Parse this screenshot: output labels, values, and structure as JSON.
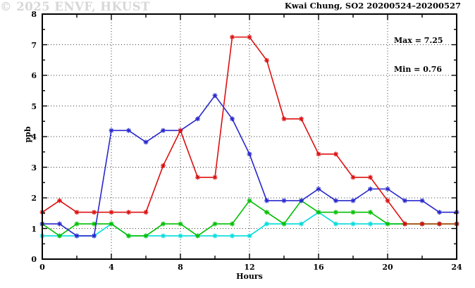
{
  "title": "Kwai Chung, SO2 20200524–20200527",
  "annotation": {
    "max_label": "Max = 7.25",
    "min_label": "Min = 0.76"
  },
  "watermark": "© 2025 ENVF, HKUST",
  "chart_data": {
    "type": "line",
    "title": "Kwai Chung, SO2 20200524–20200527",
    "xlabel": "Hours",
    "ylabel": "ppb",
    "xlim": [
      0,
      24
    ],
    "ylim": [
      0,
      8
    ],
    "x_tick_labels": [
      0,
      4,
      8,
      12,
      16,
      20,
      24
    ],
    "x_minor_tick_step": 2,
    "y_tick_labels": [
      0,
      1,
      2,
      3,
      4,
      5,
      6,
      7,
      8
    ],
    "y_minor_tick_step": 0.5,
    "grid": "dotted lines at labeled major ticks",
    "legend": "none",
    "stat_max": 7.25,
    "stat_min": 0.76,
    "x": [
      0,
      1,
      2,
      3,
      4,
      5,
      6,
      7,
      8,
      9,
      10,
      11,
      12,
      13,
      14,
      15,
      16,
      17,
      18,
      19,
      20,
      21,
      22,
      23,
      24
    ],
    "series": [
      {
        "name": "cyan-line",
        "color": "#00dcdc",
        "values": [
          0.76,
          0.76,
          0.76,
          0.76,
          1.15,
          0.76,
          0.76,
          0.76,
          0.76,
          0.76,
          0.76,
          0.76,
          0.76,
          1.15,
          1.15,
          1.15,
          1.53,
          1.15,
          1.15,
          1.15,
          1.15,
          1.15,
          1.15,
          1.15,
          1.15
        ]
      },
      {
        "name": "green-line",
        "color": "#00bf00",
        "values": [
          1.15,
          0.76,
          1.15,
          1.15,
          1.15,
          0.76,
          0.76,
          1.15,
          1.15,
          0.76,
          1.15,
          1.15,
          1.91,
          1.53,
          1.15,
          1.91,
          1.53,
          1.53,
          1.53,
          1.53,
          1.15,
          1.15,
          1.15,
          1.15,
          1.15
        ]
      },
      {
        "name": "blue-line",
        "color": "#2727cd",
        "values": [
          1.15,
          1.15,
          0.76,
          0.76,
          4.2,
          4.2,
          3.82,
          4.2,
          4.2,
          4.58,
          5.34,
          4.58,
          3.43,
          1.91,
          1.91,
          1.91,
          2.29,
          1.91,
          1.91,
          2.29,
          2.29,
          1.91,
          1.91,
          1.53,
          1.53
        ]
      },
      {
        "name": "red-line",
        "color": "#dd0f0f",
        "values": [
          1.53,
          1.91,
          1.53,
          1.53,
          1.53,
          1.53,
          1.53,
          3.05,
          4.2,
          2.67,
          2.67,
          7.25,
          7.25,
          6.49,
          4.58,
          4.58,
          3.43,
          3.43,
          2.67,
          2.67,
          1.91,
          1.15,
          1.15,
          1.15,
          1.15
        ]
      }
    ],
    "overlap_segment": {
      "note": "red/green/cyan coincide at 1.15 for hours 21-24; line renders brown with red markers",
      "color": "#aa611e",
      "x_start": 21,
      "x_end": 24,
      "value": 1.15,
      "marker_color": "#d01010",
      "marker_xs": [
        21,
        22,
        23,
        24
      ]
    }
  }
}
